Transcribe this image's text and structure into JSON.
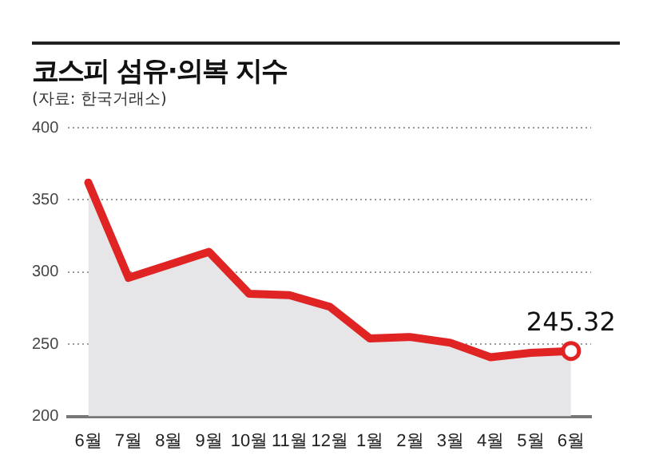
{
  "chart_data": {
    "type": "area",
    "title": "코스피 섬유·의복 지수",
    "subtitle": "(자료: 한국거래소)",
    "categories": [
      "6월",
      "7월",
      "8월",
      "9월",
      "10월",
      "11월",
      "12월",
      "1월",
      "2월",
      "3월",
      "4월",
      "5월",
      "6월"
    ],
    "series": [
      {
        "color": "#e02424",
        "values": [
          362,
          296,
          305,
          314,
          285,
          284,
          276,
          254,
          255,
          251,
          241,
          244,
          245.32
        ],
        "value_labels": [
          null,
          null,
          null,
          null,
          null,
          null,
          null,
          null,
          null,
          null,
          null,
          null,
          "245.32"
        ]
      }
    ],
    "ylim": [
      200,
      400
    ],
    "yticks": [
      200,
      250,
      300,
      350,
      400
    ],
    "grid": "y",
    "line_style": "solid"
  }
}
